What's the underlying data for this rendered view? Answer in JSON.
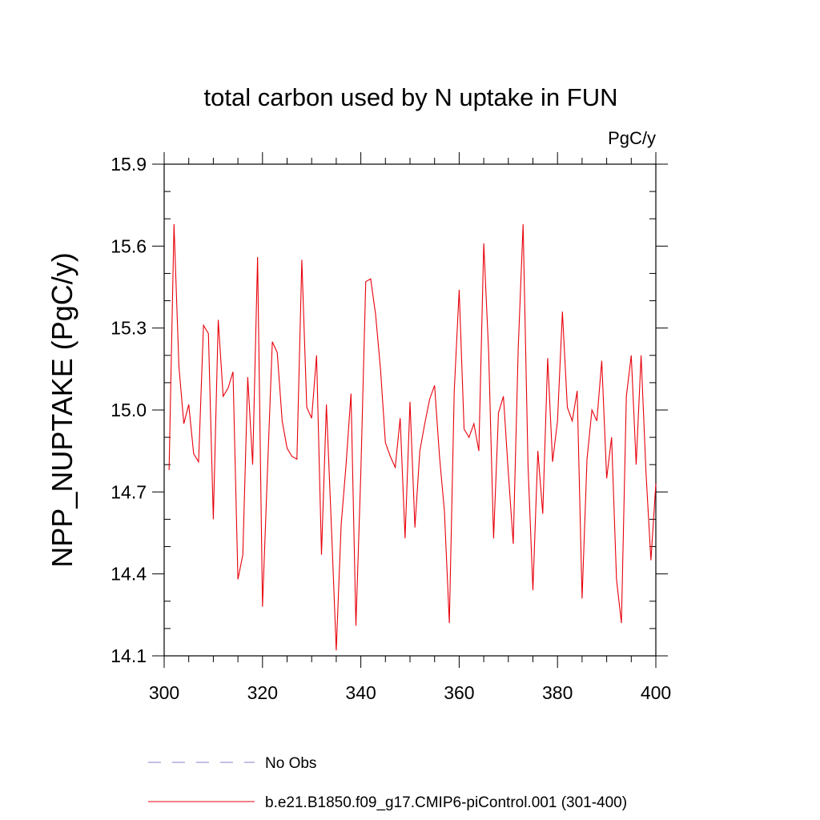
{
  "chart_data": {
    "type": "line",
    "title": "total carbon used by N uptake in FUN",
    "units": "PgC/y",
    "ylabel": "NPP_NUPTAKE  (PgC/y)",
    "xlabel": "",
    "xlim": [
      300,
      400
    ],
    "ylim": [
      14.1,
      15.9
    ],
    "xticks": [
      300,
      320,
      340,
      360,
      380,
      400
    ],
    "xtick_labels": [
      "300",
      "320",
      "340",
      "360",
      "380",
      "400"
    ],
    "yticks": [
      14.1,
      14.4,
      14.7,
      15.0,
      15.3,
      15.6,
      15.9
    ],
    "ytick_labels": [
      "14.1",
      "14.4",
      "14.7",
      "15.0",
      "15.3",
      "15.6",
      "15.9"
    ],
    "grid": false,
    "legend": {
      "placement": "bottom",
      "entries": [
        {
          "label": "No Obs",
          "color": "#8a7fc8",
          "dashed": true
        },
        {
          "label": "b.e21.B1850.f09_g17.CMIP6-piControl.001 (301-400)",
          "color": "#e8000b",
          "dashed": false
        }
      ]
    },
    "series": [
      {
        "name": "b.e21.B1850.f09_g17.CMIP6-piControl.001 (301-400)",
        "color": "#e8000b",
        "x": [
          301,
          302,
          303,
          304,
          305,
          306,
          307,
          308,
          309,
          310,
          311,
          312,
          313,
          314,
          315,
          316,
          317,
          318,
          319,
          320,
          321,
          322,
          323,
          324,
          325,
          326,
          327,
          328,
          329,
          330,
          331,
          332,
          333,
          334,
          335,
          336,
          337,
          338,
          339,
          340,
          341,
          342,
          343,
          344,
          345,
          346,
          347,
          348,
          349,
          350,
          351,
          352,
          353,
          354,
          355,
          356,
          357,
          358,
          359,
          360,
          361,
          362,
          363,
          364,
          365,
          366,
          367,
          368,
          369,
          370,
          371,
          372,
          373,
          374,
          375,
          376,
          377,
          378,
          379,
          380,
          381,
          382,
          383,
          384,
          385,
          386,
          387,
          388,
          389,
          390,
          391,
          392,
          393,
          394,
          395,
          396,
          397,
          398,
          399,
          400
        ],
        "y": [
          14.78,
          15.68,
          15.16,
          14.95,
          15.02,
          14.84,
          14.81,
          15.31,
          15.28,
          14.6,
          15.33,
          15.05,
          15.08,
          15.14,
          14.38,
          14.47,
          15.12,
          14.8,
          15.56,
          14.28,
          14.77,
          15.25,
          15.21,
          14.96,
          14.86,
          14.83,
          14.82,
          15.55,
          15.01,
          14.97,
          15.2,
          14.47,
          15.02,
          14.58,
          14.12,
          14.58,
          14.8,
          15.06,
          14.21,
          14.77,
          15.47,
          15.48,
          15.35,
          15.15,
          14.88,
          14.83,
          14.79,
          14.97,
          14.53,
          15.03,
          14.57,
          14.85,
          14.95,
          15.04,
          15.09,
          14.83,
          14.63,
          14.22,
          15.07,
          15.44,
          14.93,
          14.9,
          14.95,
          14.85,
          15.61,
          15.21,
          14.53,
          14.99,
          15.05,
          14.77,
          14.51,
          15.22,
          15.68,
          14.8,
          14.34,
          14.85,
          14.62,
          15.19,
          14.81,
          14.96,
          15.36,
          15.01,
          14.96,
          15.07,
          14.31,
          14.82,
          15.0,
          14.96,
          15.18,
          14.75,
          14.9,
          14.38,
          14.22,
          15.05,
          15.2,
          14.8,
          15.2,
          14.77,
          14.45,
          14.73
        ]
      }
    ]
  }
}
